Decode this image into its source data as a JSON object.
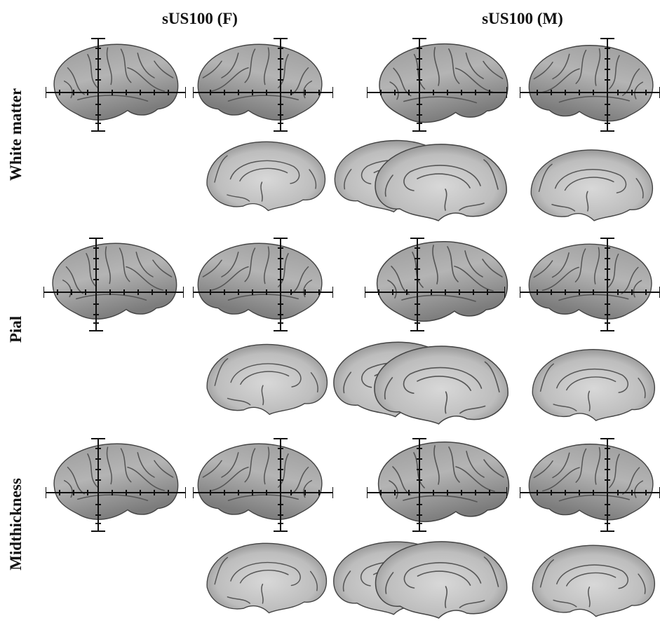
{
  "columns": [
    "sUS100 (F)",
    "sUS100 (M)"
  ],
  "rows": [
    "White matter",
    "Pial",
    "Midthickness"
  ]
}
